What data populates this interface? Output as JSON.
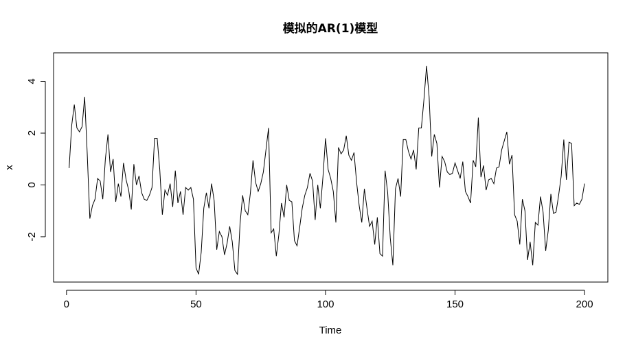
{
  "chart_data": {
    "type": "line",
    "title": "模拟的AR(1)模型",
    "xlabel": "Time",
    "ylabel": "x",
    "xlim": [
      -5,
      209
    ],
    "ylim": [
      -3.75,
      5.1
    ],
    "x_ticks": [
      0,
      50,
      100,
      150,
      200
    ],
    "y_ticks": [
      -2,
      0,
      2,
      4
    ],
    "grid": false,
    "series": [
      {
        "color": "#000000",
        "x_start": 1,
        "x_step": 1,
        "values": [
          0.65,
          2.3,
          3.1,
          2.2,
          2.05,
          2.25,
          3.4,
          1.2,
          -1.3,
          -0.8,
          -0.55,
          0.25,
          0.15,
          -0.55,
          1.0,
          1.95,
          0.5,
          1.0,
          -0.65,
          0.05,
          -0.45,
          0.85,
          0.2,
          -0.2,
          -0.95,
          0.8,
          0.0,
          0.35,
          -0.3,
          -0.55,
          -0.6,
          -0.4,
          -0.1,
          1.8,
          1.8,
          0.6,
          -1.15,
          -0.2,
          -0.4,
          0.05,
          -0.85,
          0.55,
          -0.7,
          -0.25,
          -1.15,
          -0.1,
          -0.2,
          -0.1,
          -0.55,
          -3.2,
          -3.45,
          -2.6,
          -0.9,
          -0.3,
          -0.9,
          0.05,
          -0.6,
          -2.5,
          -1.8,
          -2.0,
          -2.7,
          -2.25,
          -1.6,
          -2.2,
          -3.3,
          -3.45,
          -1.5,
          -0.4,
          -1.0,
          -1.15,
          -0.3,
          0.95,
          0.1,
          -0.25,
          0.05,
          0.5,
          1.35,
          2.2,
          -1.85,
          -1.7,
          -2.75,
          -1.9,
          -0.7,
          -1.25,
          0.0,
          -0.6,
          -0.65,
          -2.15,
          -2.35,
          -1.65,
          -0.9,
          -0.4,
          -0.1,
          0.45,
          0.15,
          -1.35,
          0.0,
          -0.9,
          0.3,
          1.8,
          0.6,
          0.25,
          -0.25,
          -1.45,
          1.45,
          1.2,
          1.35,
          1.9,
          1.15,
          0.95,
          1.25,
          0.1,
          -0.8,
          -1.45,
          -0.15,
          -0.9,
          -1.6,
          -1.4,
          -2.3,
          -1.25,
          -2.65,
          -2.75,
          0.55,
          -0.3,
          -2.05,
          -3.1,
          -0.15,
          0.25,
          -0.45,
          1.75,
          1.75,
          1.3,
          1.0,
          1.35,
          0.6,
          2.2,
          2.2,
          3.3,
          4.6,
          3.4,
          1.1,
          1.95,
          1.6,
          -0.1,
          1.1,
          0.9,
          0.5,
          0.4,
          0.45,
          0.85,
          0.55,
          0.25,
          0.9,
          -0.25,
          -0.45,
          -0.7,
          0.95,
          0.7,
          2.6,
          0.3,
          0.75,
          -0.2,
          0.2,
          0.25,
          0.05,
          0.65,
          0.7,
          1.35,
          1.7,
          2.05,
          0.8,
          1.15,
          -1.15,
          -1.4,
          -2.3,
          -0.55,
          -1.0,
          -2.9,
          -2.2,
          -3.1,
          -1.45,
          -1.55,
          -0.45,
          -1.05,
          -2.55,
          -1.75,
          -0.35,
          -1.1,
          -1.05,
          -0.4,
          0.35,
          1.75,
          0.2,
          1.65,
          1.6,
          -0.8,
          -0.7,
          -0.75,
          -0.55,
          0.05
        ]
      }
    ]
  }
}
